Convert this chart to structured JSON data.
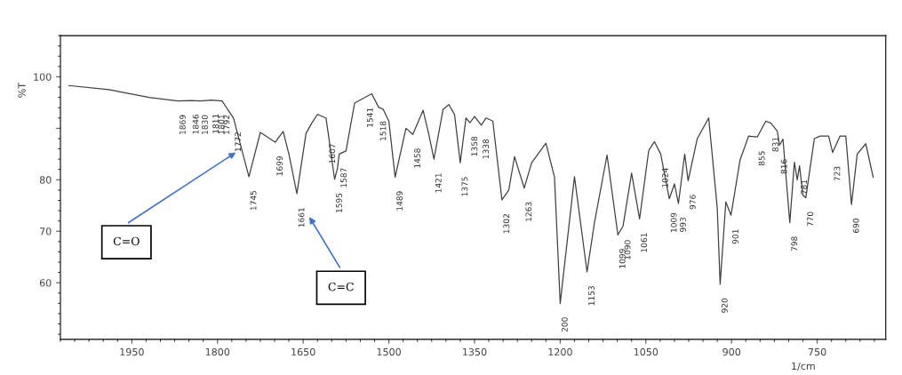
{
  "chart_data": {
    "type": "line",
    "xlabel": "1/cm",
    "ylabel": "%T",
    "xlim": [
      2075,
      630
    ],
    "ylim": [
      49,
      108
    ],
    "xticks": [
      1950,
      1800,
      1650,
      1500,
      1350,
      1200,
      1050,
      900,
      750
    ],
    "yticks": [
      60,
      70,
      80,
      {
        "value": 90,
        "label": null
      },
      100
    ],
    "grid": false,
    "legend": false,
    "marker": "none",
    "line_style": "solid",
    "series": [
      {
        "color": "#404040",
        "x": [
          2060,
          1990,
          1920,
          1869,
          1846,
          1830,
          1811,
          1801,
          1792,
          1772,
          1745,
          1725,
          1699,
          1685,
          1675,
          1661,
          1645,
          1635,
          1625,
          1610,
          1607,
          1595,
          1590,
          1587,
          1575,
          1560,
          1545,
          1530,
          1518,
          1510,
          1500,
          1489,
          1470,
          1458,
          1440,
          1430,
          1421,
          1405,
          1395,
          1385,
          1375,
          1365,
          1358,
          1350,
          1338,
          1330,
          1318,
          1302,
          1290,
          1280,
          1263,
          1250,
          1225,
          1210,
          1200,
          1175,
          1153,
          1140,
          1118,
          1099,
          1090,
          1075,
          1061,
          1045,
          1035,
          1024,
          1009,
          1000,
          993,
          982,
          976,
          960,
          940,
          925,
          920,
          910,
          901,
          885,
          870,
          855,
          840,
          831,
          820,
          816,
          810,
          798,
          790,
          785,
          781,
          775,
          770,
          755,
          745,
          730,
          723,
          710,
          700,
          690,
          680,
          665,
          652
        ],
        "values": [
          98.3,
          97.5,
          96,
          95.3,
          95.4,
          95.3,
          95.5,
          95.4,
          95.3,
          92,
          80.6,
          89.2,
          87.3,
          89.4,
          85,
          77.3,
          89,
          91,
          92.7,
          92,
          89.7,
          80.1,
          82.2,
          85,
          85.6,
          94.9,
          95.8,
          96.7,
          94.1,
          93.7,
          91.4,
          80.5,
          90,
          88.8,
          93.5,
          88.8,
          84,
          93.7,
          94.6,
          92.7,
          83.3,
          92,
          91.1,
          92.3,
          90.6,
          92,
          91.4,
          76.1,
          78,
          84.5,
          78.4,
          83.3,
          87.1,
          80.5,
          56,
          80.6,
          62.1,
          71.7,
          84.8,
          69.3,
          71,
          81.3,
          72.4,
          85.7,
          87.4,
          85,
          76.3,
          79.2,
          75.4,
          85,
          79.8,
          88,
          92,
          74.5,
          59.7,
          75.7,
          73.1,
          83.9,
          88.5,
          88.3,
          91.4,
          91,
          89.5,
          86.7,
          87.9,
          71.7,
          83.4,
          80,
          82.7,
          77,
          76.5,
          88,
          88.5,
          88.5,
          85.3,
          88.5,
          88.5,
          75.2,
          85,
          87,
          80.5
        ]
      }
    ],
    "annotations": [
      "C=O",
      "C=C",
      {
        "text": "1869",
        "x": 1869,
        "y": 95.3
      },
      {
        "text": "1846",
        "x": 1846,
        "y": 95.4
      },
      {
        "text": "1830",
        "x": 1830,
        "y": 95.3
      },
      {
        "text": "1811",
        "x": 1811,
        "y": 95.5
      },
      {
        "text": "1801",
        "x": 1801,
        "y": 95.4
      },
      {
        "text": "1792",
        "x": 1792,
        "y": 95.3
      },
      {
        "text": "1772",
        "x": 1772,
        "y": 92
      },
      {
        "text": "1745",
        "x": 1745,
        "y": 80.6
      },
      {
        "text": "1699",
        "x": 1699,
        "y": 87.3
      },
      {
        "text": "1661",
        "x": 1661,
        "y": 77.3
      },
      {
        "text": "1607",
        "x": 1607,
        "y": 89.7
      },
      {
        "text": "1595",
        "x": 1595,
        "y": 80.1
      },
      {
        "text": "1587",
        "x": 1587,
        "y": 85
      },
      {
        "text": "1541",
        "x": 1541,
        "y": 96.7
      },
      {
        "text": "1518",
        "x": 1518,
        "y": 94.1
      },
      {
        "text": "1489",
        "x": 1489,
        "y": 80.5
      },
      {
        "text": "1458",
        "x": 1458,
        "y": 88.8
      },
      {
        "text": "1421",
        "x": 1421,
        "y": 84
      },
      {
        "text": "1375",
        "x": 1375,
        "y": 83.3
      },
      {
        "text": "1358",
        "x": 1358,
        "y": 91.1
      },
      {
        "text": "1338",
        "x": 1338,
        "y": 90.6
      },
      {
        "text": "1302",
        "x": 1302,
        "y": 76.1
      },
      {
        "text": "1263",
        "x": 1263,
        "y": 78.4
      },
      {
        "text": "200",
        "x": 1200,
        "y": 56
      },
      {
        "text": "1153",
        "x": 1153,
        "y": 62.1
      },
      {
        "text": "1099",
        "x": 1099,
        "y": 69.3
      },
      {
        "text": "1090",
        "x": 1090,
        "y": 71
      },
      {
        "text": "1061",
        "x": 1061,
        "y": 72.4
      },
      {
        "text": "1024",
        "x": 1024,
        "y": 85
      },
      {
        "text": "1009",
        "x": 1009,
        "y": 76.3
      },
      {
        "text": "993",
        "x": 993,
        "y": 75.4
      },
      {
        "text": "976",
        "x": 976,
        "y": 79.8
      },
      {
        "text": "920",
        "x": 920,
        "y": 59.7
      },
      {
        "text": "901",
        "x": 901,
        "y": 73.1
      },
      {
        "text": "855",
        "x": 855,
        "y": 88.3
      },
      {
        "text": "831",
        "x": 831,
        "y": 91
      },
      {
        "text": "816",
        "x": 816,
        "y": 86.7
      },
      {
        "text": "798",
        "x": 798,
        "y": 71.7
      },
      {
        "text": "781",
        "x": 781,
        "y": 82.7
      },
      {
        "text": "770",
        "x": 770,
        "y": 76.5
      },
      {
        "text": "723",
        "x": 723,
        "y": 85.3
      },
      {
        "text": "690",
        "x": 690,
        "y": 75.2
      }
    ]
  }
}
